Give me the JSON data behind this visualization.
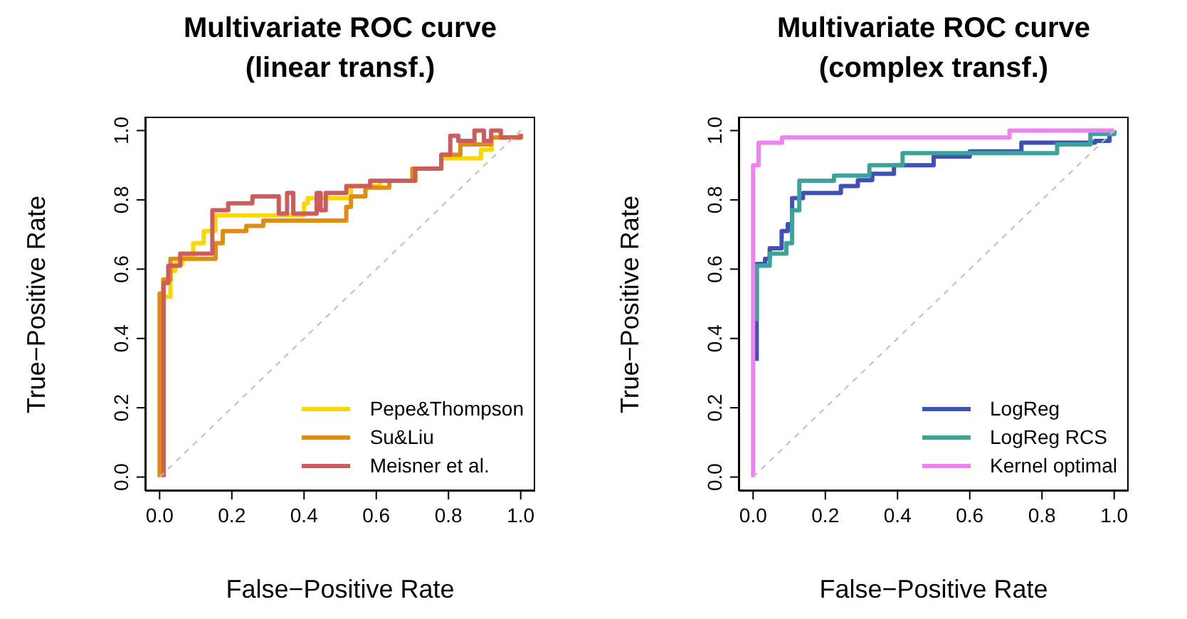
{
  "chart_data": [
    {
      "type": "step",
      "title": "Multivariate ROC curve",
      "subtitle": "(linear transf.)",
      "xlabel": "False−Positive Rate",
      "ylabel": "True−Positive Rate",
      "xlim": [
        -0.04,
        1.04
      ],
      "ylim": [
        -0.04,
        1.04
      ],
      "xticks": [
        {
          "value": 0,
          "label": "0.0"
        },
        {
          "value": 0.2,
          "label": "0.2"
        },
        {
          "value": 0.4,
          "label": "0.4"
        },
        {
          "value": 0.6,
          "label": "0.6"
        },
        {
          "value": 0.8,
          "label": "0.8"
        },
        {
          "value": 1,
          "label": "1.0"
        }
      ],
      "yticks": [
        {
          "value": 0,
          "label": "0.0"
        },
        {
          "value": 0.2,
          "label": "0.2"
        },
        {
          "value": 0.4,
          "label": "0.4"
        },
        {
          "value": 0.6,
          "label": "0.6"
        },
        {
          "value": 0.8,
          "label": "0.8"
        },
        {
          "value": 1,
          "label": "1.0"
        }
      ],
      "legend": "bottom right",
      "series": [
        {
          "name": "Pepe&Thompson",
          "color": "#ffd700",
          "x": [
            0.01,
            0.01,
            0.03,
            0.043,
            0.063,
            0.093,
            0.122,
            0.155,
            0.4,
            0.41,
            0.53,
            0.61,
            0.708,
            0.78,
            0.89,
            0.92,
            1.0
          ],
          "values": [
            0,
            0.52,
            0.595,
            0.615,
            0.64,
            0.675,
            0.71,
            0.755,
            0.79,
            0.805,
            0.84,
            0.855,
            0.89,
            0.92,
            0.945,
            0.98,
            0.99
          ]
        },
        {
          "name": "Su&Liu",
          "color": "#e08c10",
          "x": [
            0,
            0,
            0.01,
            0.03,
            0.155,
            0.175,
            0.24,
            0.287,
            0.517,
            0.53,
            0.57,
            0.636,
            0.7,
            0.78,
            0.833,
            0.918,
            1.0
          ],
          "values": [
            0,
            0.53,
            0.57,
            0.63,
            0.675,
            0.71,
            0.725,
            0.74,
            0.78,
            0.81,
            0.835,
            0.855,
            0.89,
            0.93,
            0.96,
            0.98,
            0.99
          ]
        },
        {
          "name": "Meisner et al.",
          "color": "#cd5c5c",
          "x": [
            0.011,
            0.011,
            0.024,
            0.057,
            0.146,
            0.19,
            0.257,
            0.33,
            0.353,
            0.37,
            0.435,
            0.446,
            0.46,
            0.517,
            0.583,
            0.708,
            0.78,
            0.805,
            0.827,
            0.872,
            0.898,
            0.918,
            0.945,
            1.0
          ],
          "values": [
            0,
            0.56,
            0.61,
            0.645,
            0.77,
            0.79,
            0.81,
            0.76,
            0.82,
            0.76,
            0.82,
            0.77,
            0.82,
            0.84,
            0.855,
            0.89,
            0.93,
            0.985,
            0.97,
            1.0,
            0.97,
            1.0,
            0.98,
            0.99
          ]
        },
        {
          "type": "line",
          "color": "#bebebe",
          "line_style": "dashed",
          "x": [
            0,
            1
          ],
          "values": [
            0,
            1
          ]
        }
      ]
    },
    {
      "type": "step",
      "title": "Multivariate ROC curve",
      "subtitle": "(complex transf.)",
      "xlabel": "False−Positive Rate",
      "ylabel": "True−Positive Rate",
      "xlim": [
        -0.04,
        1.04
      ],
      "ylim": [
        -0.04,
        1.04
      ],
      "xticks": [
        {
          "value": 0,
          "label": "0.0"
        },
        {
          "value": 0.2,
          "label": "0.2"
        },
        {
          "value": 0.4,
          "label": "0.4"
        },
        {
          "value": 0.6,
          "label": "0.6"
        },
        {
          "value": 0.8,
          "label": "0.8"
        },
        {
          "value": 1,
          "label": "1.0"
        }
      ],
      "yticks": [
        {
          "value": 0,
          "label": "0.0"
        },
        {
          "value": 0.2,
          "label": "0.2"
        },
        {
          "value": 0.4,
          "label": "0.4"
        },
        {
          "value": 0.6,
          "label": "0.6"
        },
        {
          "value": 0.8,
          "label": "0.8"
        },
        {
          "value": 1,
          "label": "1.0"
        }
      ],
      "legend": "bottom right",
      "series": [
        {
          "name": "LogReg",
          "color": "#3f51b5",
          "x": [
            0.01,
            0.01,
            0.033,
            0.046,
            0.079,
            0.096,
            0.108,
            0.138,
            0.243,
            0.29,
            0.33,
            0.39,
            0.5,
            0.6,
            0.743,
            0.947,
            0.987,
            1.0
          ],
          "values": [
            0.335,
            0.615,
            0.63,
            0.66,
            0.71,
            0.73,
            0.805,
            0.82,
            0.84,
            0.857,
            0.875,
            0.9,
            0.925,
            0.94,
            0.965,
            0.97,
            0.99,
            1.0
          ]
        },
        {
          "name": "LogReg RCS",
          "color": "#3aa39a",
          "x": [
            0.01,
            0.01,
            0.046,
            0.092,
            0.108,
            0.128,
            0.224,
            0.322,
            0.414,
            0.842,
            0.934,
            1.0
          ],
          "values": [
            0.45,
            0.61,
            0.645,
            0.675,
            0.77,
            0.855,
            0.87,
            0.9,
            0.935,
            0.96,
            0.99,
            1.0
          ]
        },
        {
          "name": "Kernel optimal",
          "color": "#ee82ee",
          "x": [
            0,
            0,
            0.015,
            0.08,
            0.71,
            1.0
          ],
          "values": [
            0,
            0.9,
            0.965,
            0.98,
            1.0,
            1.0
          ]
        },
        {
          "type": "line",
          "color": "#bebebe",
          "line_style": "dashed",
          "x": [
            0,
            1
          ],
          "values": [
            0,
            1
          ]
        }
      ]
    }
  ]
}
